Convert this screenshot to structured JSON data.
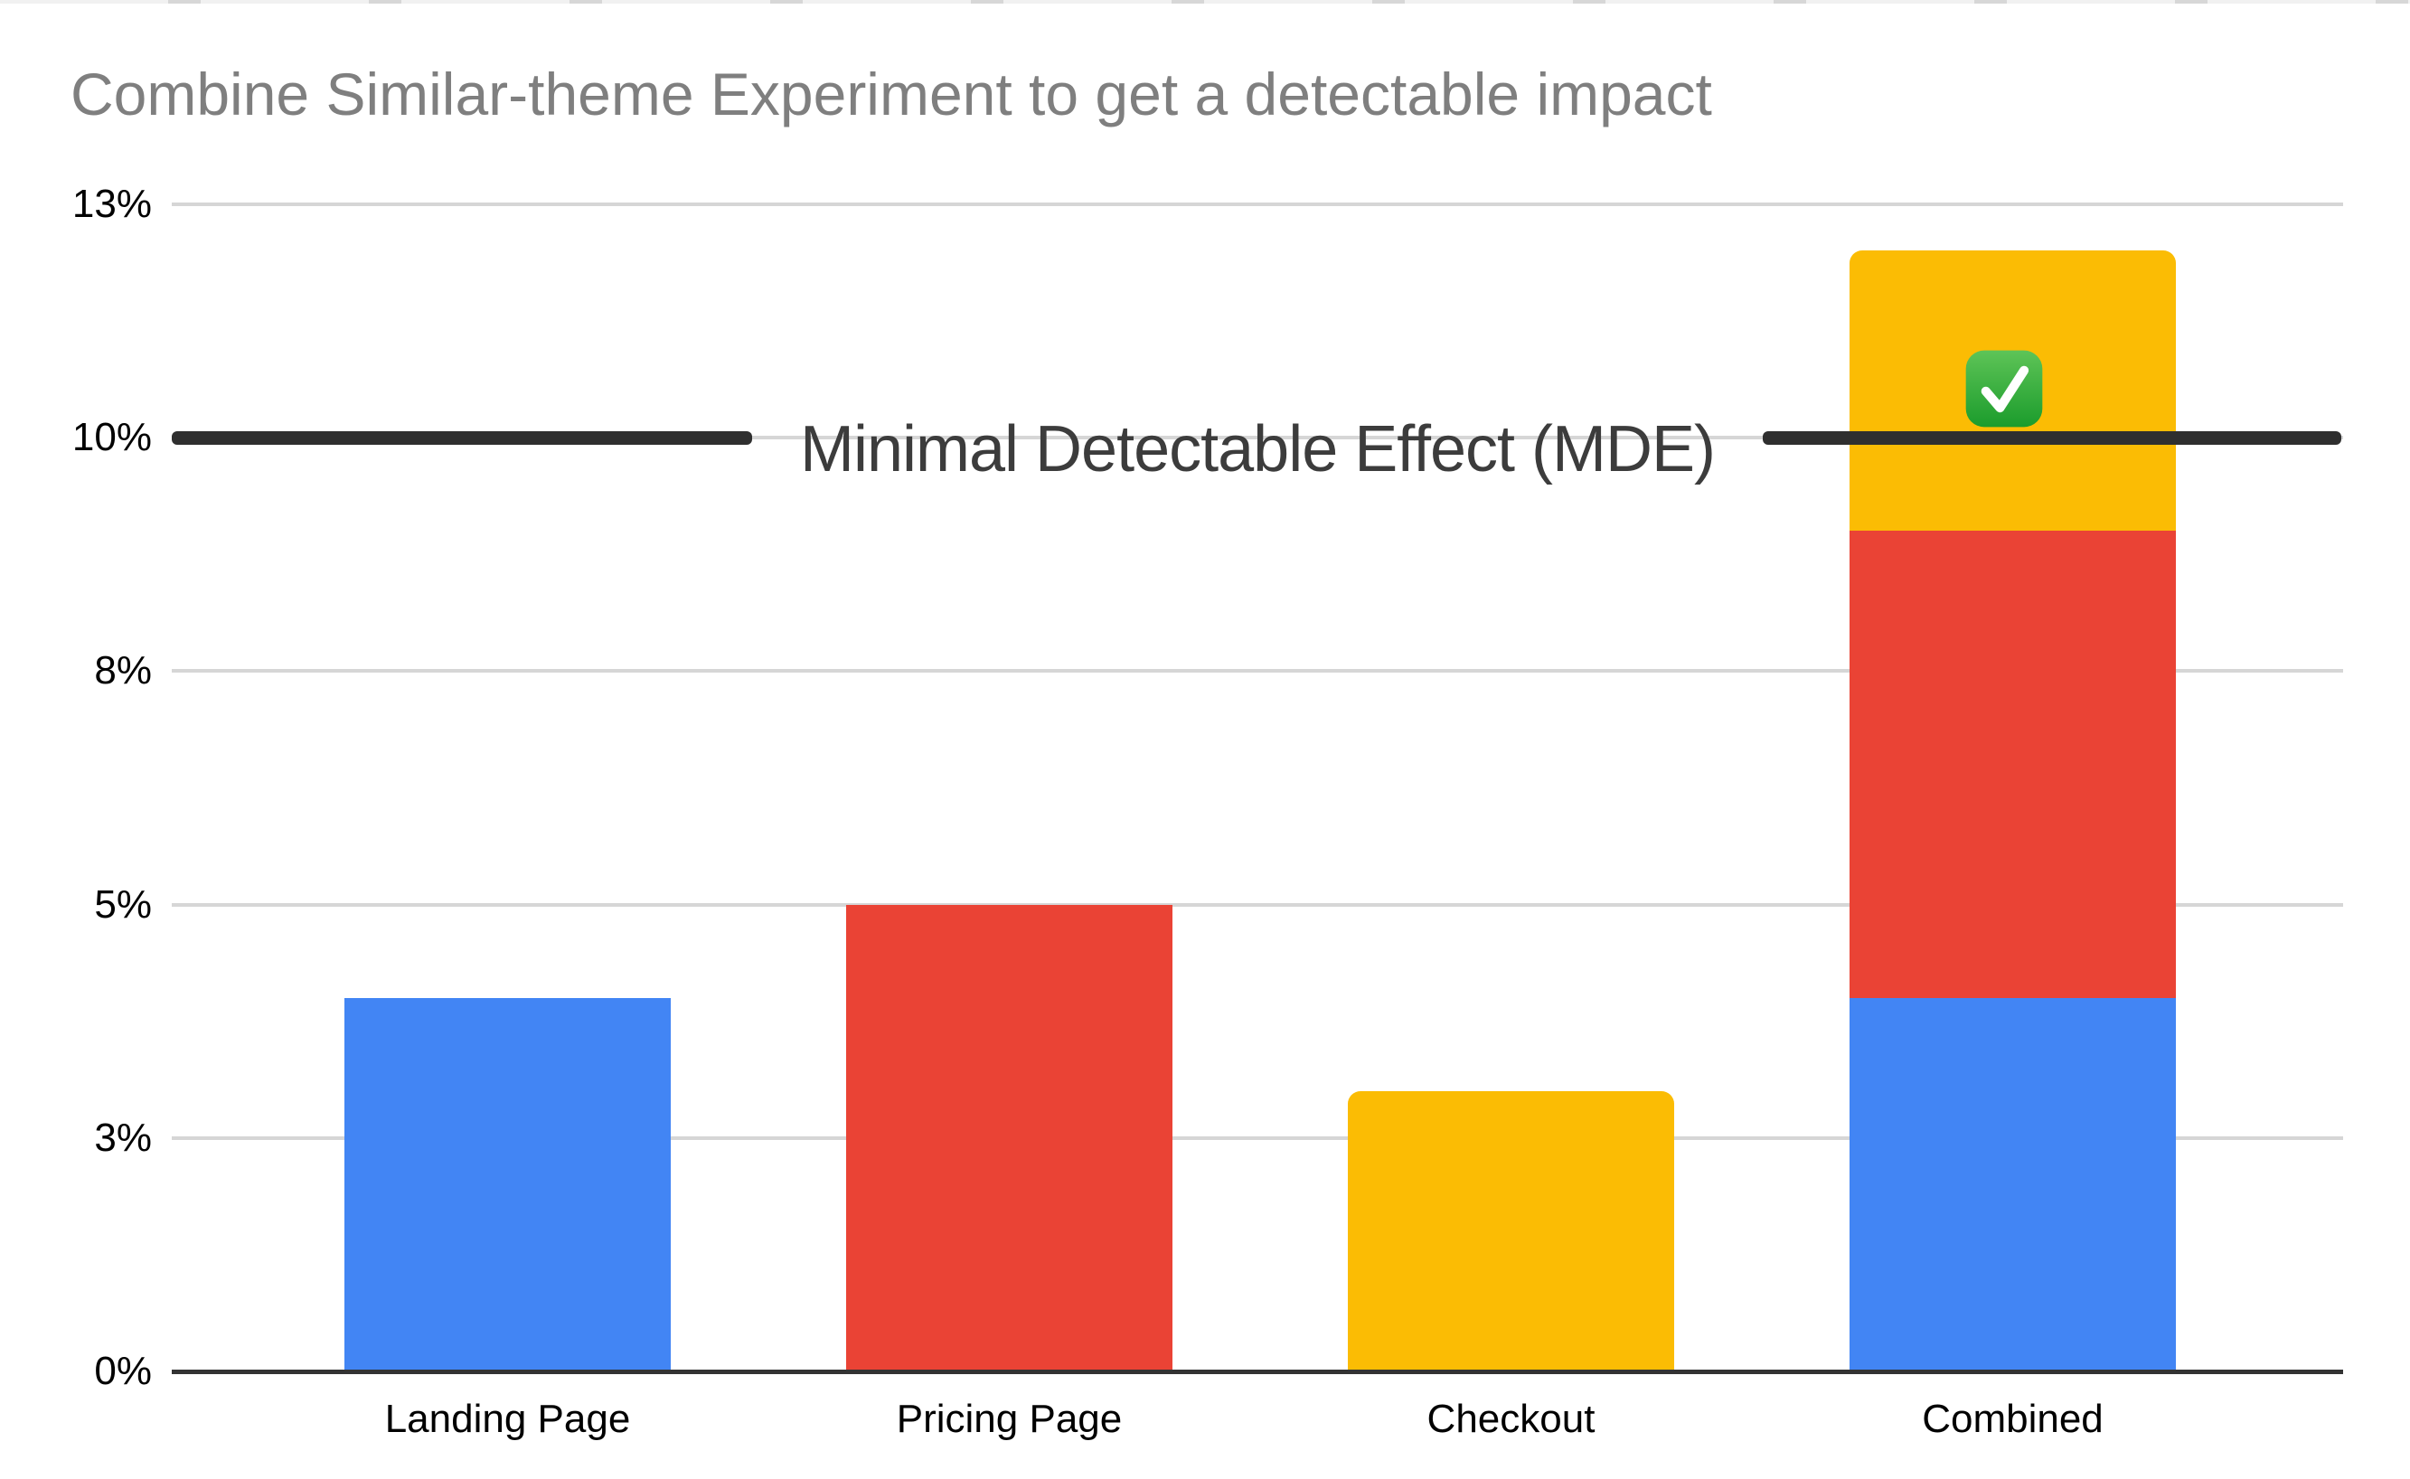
{
  "chart_data": {
    "type": "bar",
    "stacked": true,
    "title": "Combine Similar-theme Experiment to get a detectable impact",
    "title_color": "#7f7f7f",
    "categories": [
      "Landing Page",
      "Pricing Page",
      "Checkout",
      "Combined"
    ],
    "series": [
      {
        "name": "Landing Page",
        "color": "#4285F4",
        "rounded_top": false,
        "values": [
          4.0,
          0,
          0,
          4.0
        ]
      },
      {
        "name": "Pricing Page",
        "color": "#EA4335",
        "rounded_top": false,
        "values": [
          0,
          5.0,
          0,
          5.0
        ]
      },
      {
        "name": "Checkout",
        "color": "#FBBC04",
        "rounded_top": true,
        "values": [
          0,
          0,
          3.0,
          3.0
        ]
      }
    ],
    "totals": [
      4.0,
      5.0,
      3.0,
      12.0
    ],
    "y_axis": {
      "unit": "%",
      "range": [
        0,
        13.2
      ],
      "ticks": [
        {
          "value": 0,
          "label": "0%"
        },
        {
          "value": 2.5,
          "label": "3%"
        },
        {
          "value": 5,
          "label": "5%"
        },
        {
          "value": 7.5,
          "label": "8%"
        },
        {
          "value": 10,
          "label": "10%"
        },
        {
          "value": 12.5,
          "label": "13%"
        }
      ]
    },
    "grid": true,
    "legend": "none",
    "annotations": [
      {
        "type": "hline",
        "value": 10,
        "label": "Minimal Detectable Effect (MDE)",
        "line_color": "#2f2f2f"
      },
      {
        "type": "emoji",
        "name": "white-check-mark",
        "symbol": "✅",
        "on_category": "Combined"
      }
    ]
  }
}
